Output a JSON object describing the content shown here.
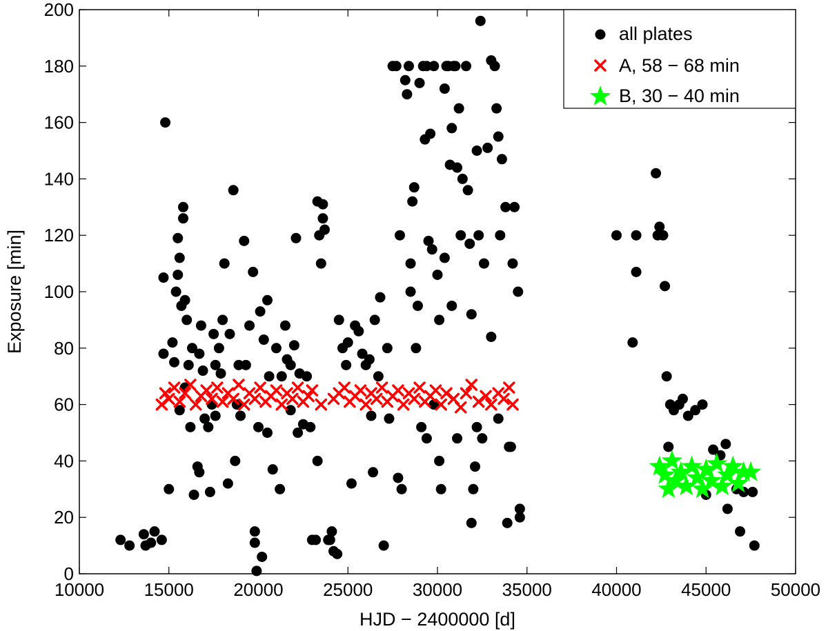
{
  "chart_data": {
    "type": "scatter",
    "title": "",
    "xlabel": "HJD − 2400000 [d]",
    "ylabel": "Exposure [min]",
    "xlim": [
      10000,
      50000
    ],
    "ylim": [
      0,
      200
    ],
    "xticks": [
      10000,
      15000,
      20000,
      25000,
      30000,
      35000,
      40000,
      45000,
      50000
    ],
    "yticks": [
      0,
      20,
      40,
      60,
      80,
      100,
      120,
      140,
      160,
      180,
      200
    ],
    "grid": false,
    "legend_position": "top-right",
    "series": [
      {
        "name": "all plates",
        "marker": "circle",
        "color": "#000000",
        "points": [
          [
            12300,
            12
          ],
          [
            12800,
            10
          ],
          [
            13600,
            14
          ],
          [
            13700,
            10
          ],
          [
            14000,
            11
          ],
          [
            14200,
            15
          ],
          [
            14600,
            12
          ],
          [
            14800,
            160
          ],
          [
            14700,
            105
          ],
          [
            14700,
            78
          ],
          [
            15000,
            30
          ],
          [
            15200,
            82
          ],
          [
            15300,
            75
          ],
          [
            15400,
            100
          ],
          [
            15500,
            119
          ],
          [
            15500,
            106
          ],
          [
            15600,
            112
          ],
          [
            15700,
            95
          ],
          [
            15800,
            130
          ],
          [
            15800,
            126
          ],
          [
            15900,
            97
          ],
          [
            16000,
            90
          ],
          [
            16100,
            74
          ],
          [
            16300,
            80
          ],
          [
            16400,
            28
          ],
          [
            16600,
            38
          ],
          [
            16700,
            36
          ],
          [
            16800,
            88
          ],
          [
            16900,
            72
          ],
          [
            17000,
            55
          ],
          [
            17200,
            52
          ],
          [
            17300,
            29
          ],
          [
            17500,
            85
          ],
          [
            17600,
            74
          ],
          [
            17800,
            80
          ],
          [
            17900,
            71
          ],
          [
            18000,
            90
          ],
          [
            18100,
            110
          ],
          [
            18300,
            32
          ],
          [
            18400,
            85
          ],
          [
            18600,
            136
          ],
          [
            18700,
            40
          ],
          [
            18900,
            74
          ],
          [
            19200,
            118
          ],
          [
            19500,
            88
          ],
          [
            19700,
            107
          ],
          [
            19800,
            15
          ],
          [
            19800,
            11
          ],
          [
            19900,
            1
          ],
          [
            20000,
            52
          ],
          [
            20100,
            93
          ],
          [
            20200,
            6
          ],
          [
            20300,
            83
          ],
          [
            20500,
            97
          ],
          [
            20600,
            70
          ],
          [
            20800,
            37
          ],
          [
            21000,
            80
          ],
          [
            21200,
            30
          ],
          [
            21300,
            70
          ],
          [
            21500,
            88
          ],
          [
            21600,
            76
          ],
          [
            21800,
            58
          ],
          [
            22000,
            81
          ],
          [
            22100,
            119
          ],
          [
            22300,
            71
          ],
          [
            22500,
            53
          ],
          [
            22700,
            70
          ],
          [
            22900,
            52
          ],
          [
            23000,
            12
          ],
          [
            23200,
            12
          ],
          [
            23300,
            132
          ],
          [
            23300,
            40
          ],
          [
            23400,
            120
          ],
          [
            23500,
            110
          ],
          [
            23600,
            131
          ],
          [
            23600,
            126
          ],
          [
            23700,
            122
          ],
          [
            23900,
            12
          ],
          [
            24000,
            12
          ],
          [
            24100,
            15
          ],
          [
            24200,
            8
          ],
          [
            24400,
            7
          ],
          [
            24500,
            90
          ],
          [
            24700,
            80
          ],
          [
            25000,
            82
          ],
          [
            25200,
            32
          ],
          [
            25400,
            88
          ],
          [
            25600,
            86
          ],
          [
            25800,
            78
          ],
          [
            26000,
            74
          ],
          [
            26200,
            76
          ],
          [
            26400,
            36
          ],
          [
            26500,
            90
          ],
          [
            26700,
            70
          ],
          [
            26800,
            98
          ],
          [
            27000,
            10
          ],
          [
            27200,
            80
          ],
          [
            27500,
            180
          ],
          [
            27700,
            180
          ],
          [
            27800,
            34
          ],
          [
            28000,
            30
          ],
          [
            28200,
            175
          ],
          [
            28300,
            170
          ],
          [
            28400,
            180
          ],
          [
            28500,
            110
          ],
          [
            28500,
            100
          ],
          [
            28600,
            132
          ],
          [
            28700,
            137
          ],
          [
            28800,
            80
          ],
          [
            29000,
            174
          ],
          [
            29200,
            180
          ],
          [
            29300,
            154
          ],
          [
            29400,
            180
          ],
          [
            29500,
            118
          ],
          [
            29600,
            156
          ],
          [
            29700,
            115
          ],
          [
            29800,
            180
          ],
          [
            30000,
            106
          ],
          [
            30100,
            40
          ],
          [
            30200,
            30
          ],
          [
            30400,
            172
          ],
          [
            30500,
            180
          ],
          [
            30600,
            180
          ],
          [
            30700,
            145
          ],
          [
            30800,
            158
          ],
          [
            30900,
            180
          ],
          [
            31000,
            180
          ],
          [
            31100,
            144
          ],
          [
            31200,
            165
          ],
          [
            31300,
            120
          ],
          [
            31400,
            140
          ],
          [
            31600,
            180
          ],
          [
            31700,
            136
          ],
          [
            31800,
            117
          ],
          [
            31900,
            18
          ],
          [
            32000,
            30
          ],
          [
            32100,
            38
          ],
          [
            32200,
            150
          ],
          [
            32300,
            120
          ],
          [
            32400,
            196
          ],
          [
            32600,
            110
          ],
          [
            32800,
            151
          ],
          [
            33000,
            182
          ],
          [
            33200,
            180
          ],
          [
            33300,
            165
          ],
          [
            33400,
            155
          ],
          [
            33500,
            120
          ],
          [
            33600,
            147
          ],
          [
            33800,
            130
          ],
          [
            33900,
            18
          ],
          [
            34000,
            45
          ],
          [
            34100,
            45
          ],
          [
            34200,
            110
          ],
          [
            34300,
            130
          ],
          [
            34500,
            100
          ],
          [
            34600,
            23
          ],
          [
            34600,
            20
          ],
          [
            29800,
            60
          ],
          [
            30100,
            90
          ],
          [
            30400,
            112
          ],
          [
            28900,
            95
          ],
          [
            27900,
            120
          ],
          [
            26300,
            56
          ],
          [
            22200,
            50
          ],
          [
            20500,
            50
          ],
          [
            19000,
            56
          ],
          [
            18800,
            60
          ],
          [
            17600,
            56
          ],
          [
            16200,
            52
          ],
          [
            15600,
            58
          ],
          [
            15900,
            66
          ],
          [
            16700,
            78
          ],
          [
            17400,
            60
          ],
          [
            19300,
            74
          ],
          [
            21800,
            74
          ],
          [
            24900,
            74
          ],
          [
            27300,
            55
          ],
          [
            29100,
            52
          ],
          [
            29400,
            48
          ],
          [
            31100,
            48
          ],
          [
            32200,
            52
          ],
          [
            32500,
            48
          ],
          [
            33400,
            55
          ],
          [
            33000,
            84
          ],
          [
            31900,
            92
          ],
          [
            30800,
            95
          ],
          [
            40000,
            120
          ],
          [
            40900,
            82
          ],
          [
            41100,
            120
          ],
          [
            41100,
            107
          ],
          [
            42200,
            142
          ],
          [
            42300,
            120
          ],
          [
            42400,
            123
          ],
          [
            42600,
            120
          ],
          [
            42700,
            102
          ],
          [
            42800,
            70
          ],
          [
            42900,
            45
          ],
          [
            43000,
            60
          ],
          [
            43200,
            58
          ],
          [
            43500,
            60
          ],
          [
            43700,
            62
          ],
          [
            44000,
            56
          ],
          [
            44400,
            58
          ],
          [
            44800,
            60
          ],
          [
            45000,
            28
          ],
          [
            45400,
            44
          ],
          [
            45800,
            42
          ],
          [
            46100,
            46
          ],
          [
            46200,
            23
          ],
          [
            46700,
            30
          ],
          [
            46900,
            15
          ],
          [
            47100,
            29
          ],
          [
            47700,
            10
          ],
          [
            47600,
            29
          ]
        ]
      },
      {
        "name": "A, 58 − 68 min",
        "marker": "x",
        "color": "#ff0000",
        "points": [
          [
            14600,
            60
          ],
          [
            14800,
            64
          ],
          [
            15000,
            62
          ],
          [
            15300,
            66
          ],
          [
            15600,
            61
          ],
          [
            15900,
            64
          ],
          [
            16200,
            67
          ],
          [
            16500,
            60
          ],
          [
            16800,
            63
          ],
          [
            17100,
            65
          ],
          [
            17400,
            62
          ],
          [
            17700,
            66
          ],
          [
            18000,
            61
          ],
          [
            18300,
            64
          ],
          [
            18600,
            62
          ],
          [
            18900,
            67
          ],
          [
            19200,
            60
          ],
          [
            19500,
            64
          ],
          [
            19800,
            62
          ],
          [
            20100,
            66
          ],
          [
            20400,
            61
          ],
          [
            20700,
            63
          ],
          [
            21000,
            65
          ],
          [
            21300,
            60
          ],
          [
            21600,
            64
          ],
          [
            21900,
            62
          ],
          [
            22200,
            66
          ],
          [
            22500,
            61
          ],
          [
            22800,
            63
          ],
          [
            23000,
            65
          ],
          [
            23500,
            60
          ],
          [
            24200,
            62
          ],
          [
            24500,
            64
          ],
          [
            24800,
            66
          ],
          [
            25100,
            61
          ],
          [
            25400,
            63
          ],
          [
            25700,
            65
          ],
          [
            26000,
            60
          ],
          [
            26300,
            64
          ],
          [
            26600,
            62
          ],
          [
            26900,
            66
          ],
          [
            27200,
            61
          ],
          [
            27500,
            63
          ],
          [
            27800,
            65
          ],
          [
            28100,
            60
          ],
          [
            28400,
            64
          ],
          [
            28700,
            62
          ],
          [
            29000,
            66
          ],
          [
            29300,
            61
          ],
          [
            29600,
            63
          ],
          [
            29900,
            65
          ],
          [
            30200,
            60
          ],
          [
            30500,
            64
          ],
          [
            30900,
            62
          ],
          [
            31300,
            59
          ],
          [
            31600,
            64
          ],
          [
            31900,
            67
          ],
          [
            32300,
            61
          ],
          [
            32700,
            63
          ],
          [
            33000,
            60
          ],
          [
            33400,
            64
          ],
          [
            33700,
            62
          ],
          [
            34000,
            66
          ],
          [
            34200,
            60
          ]
        ]
      },
      {
        "name": "B, 30 − 40 min",
        "marker": "star",
        "color": "#00ff00",
        "points": [
          [
            42400,
            38
          ],
          [
            42700,
            35
          ],
          [
            42900,
            30
          ],
          [
            43100,
            40
          ],
          [
            43300,
            33
          ],
          [
            43600,
            36
          ],
          [
            43900,
            31
          ],
          [
            44200,
            38
          ],
          [
            44500,
            34
          ],
          [
            44800,
            30
          ],
          [
            45000,
            37
          ],
          [
            45300,
            33
          ],
          [
            45600,
            39
          ],
          [
            45900,
            31
          ],
          [
            46200,
            35
          ],
          [
            46500,
            38
          ],
          [
            46800,
            32
          ],
          [
            47100,
            36
          ],
          [
            47500,
            36
          ]
        ]
      }
    ]
  }
}
